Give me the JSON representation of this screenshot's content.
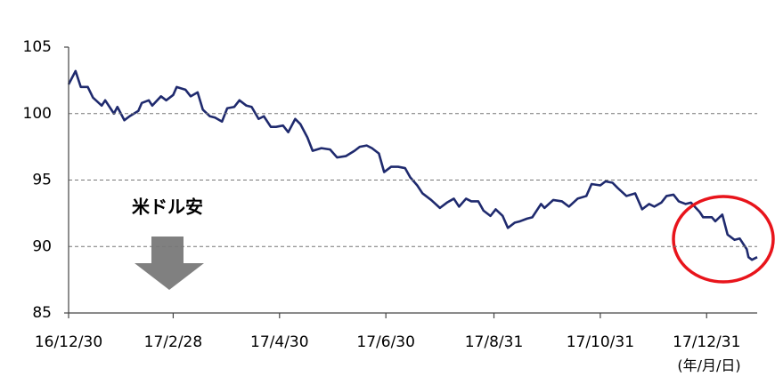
{
  "chart_data": {
    "type": "line",
    "annotations": [
      "米ドル安",
      "(年/月/日)"
    ],
    "x": [
      "2016-12-30",
      "2017-01-03",
      "2017-01-06",
      "2017-01-10",
      "2017-01-13",
      "2017-01-18",
      "2017-01-20",
      "2017-01-25",
      "2017-01-27",
      "2017-01-31",
      "2017-02-03",
      "2017-02-08",
      "2017-02-10",
      "2017-02-14",
      "2017-02-16",
      "2017-02-21",
      "2017-02-24",
      "2017-02-28",
      "2017-03-02",
      "2017-03-07",
      "2017-03-10",
      "2017-03-14",
      "2017-03-17",
      "2017-03-21",
      "2017-03-24",
      "2017-03-28",
      "2017-03-31",
      "2017-04-04",
      "2017-04-07",
      "2017-04-11",
      "2017-04-14",
      "2017-04-18",
      "2017-04-21",
      "2017-04-25",
      "2017-04-28",
      "2017-05-02",
      "2017-05-05",
      "2017-05-09",
      "2017-05-12",
      "2017-05-16",
      "2017-05-19",
      "2017-05-24",
      "2017-05-29",
      "2017-06-02",
      "2017-06-07",
      "2017-06-12",
      "2017-06-15",
      "2017-06-19",
      "2017-06-22",
      "2017-06-26",
      "2017-06-29",
      "2017-07-03",
      "2017-07-07",
      "2017-07-11",
      "2017-07-14",
      "2017-07-18",
      "2017-07-21",
      "2017-07-26",
      "2017-07-31",
      "2017-08-04",
      "2017-08-08",
      "2017-08-11",
      "2017-08-15",
      "2017-08-18",
      "2017-08-22",
      "2017-08-25",
      "2017-08-29",
      "2017-09-01",
      "2017-09-05",
      "2017-09-08",
      "2017-09-12",
      "2017-09-15",
      "2017-09-19",
      "2017-09-22",
      "2017-09-27",
      "2017-09-29",
      "2017-10-04",
      "2017-10-09",
      "2017-10-13",
      "2017-10-18",
      "2017-10-23",
      "2017-10-26",
      "2017-10-31",
      "2017-11-03",
      "2017-11-07",
      "2017-11-10",
      "2017-11-15",
      "2017-11-20",
      "2017-11-24",
      "2017-11-28",
      "2017-12-01",
      "2017-12-05",
      "2017-12-08",
      "2017-12-12",
      "2017-12-15",
      "2017-12-19",
      "2017-12-22",
      "2017-12-27",
      "2017-12-29",
      "2018-01-03",
      "2018-01-05",
      "2018-01-09",
      "2018-01-12",
      "2018-01-16",
      "2018-01-19",
      "2018-01-23",
      "2018-01-24",
      "2018-01-26",
      "2018-01-29"
    ],
    "series": [
      {
        "color": "#1f2a6e",
        "values": [
          102.2,
          103.2,
          102.0,
          102.0,
          101.2,
          100.6,
          101.0,
          100.0,
          100.5,
          99.5,
          99.8,
          100.2,
          100.8,
          101.0,
          100.6,
          101.3,
          101.0,
          101.4,
          102.0,
          101.8,
          101.3,
          101.6,
          100.3,
          99.8,
          99.7,
          99.4,
          100.4,
          100.5,
          101.0,
          100.6,
          100.5,
          99.6,
          99.8,
          99.0,
          99.0,
          99.1,
          98.6,
          99.6,
          99.2,
          98.2,
          97.2,
          97.4,
          97.3,
          96.7,
          96.8,
          97.2,
          97.5,
          97.6,
          97.4,
          97.0,
          95.6,
          96.0,
          96.0,
          95.9,
          95.2,
          94.6,
          94.0,
          93.5,
          92.9,
          93.3,
          93.6,
          93.0,
          93.6,
          93.4,
          93.4,
          92.7,
          92.3,
          92.8,
          92.3,
          91.4,
          91.8,
          91.9,
          92.1,
          92.2,
          93.2,
          92.9,
          93.5,
          93.4,
          93.0,
          93.6,
          93.8,
          94.7,
          94.6,
          94.9,
          94.8,
          94.4,
          93.8,
          94.0,
          92.8,
          93.2,
          93.0,
          93.3,
          93.8,
          93.9,
          93.4,
          93.2,
          93.3,
          92.6,
          92.2,
          92.2,
          91.9,
          92.4,
          90.9,
          90.5,
          90.6,
          89.8,
          89.2,
          89.0,
          89.2
        ]
      }
    ],
    "xlim": [
      "2016-12-30",
      "2018-01-29"
    ],
    "xticks": [
      {
        "value": "2016-12-30",
        "label": "16/12/30"
      },
      {
        "value": "2017-02-28",
        "label": "17/2/28"
      },
      {
        "value": "2017-04-30",
        "label": "17/4/30"
      },
      {
        "value": "2017-06-30",
        "label": "17/6/30"
      },
      {
        "value": "2017-08-31",
        "label": "17/8/31"
      },
      {
        "value": "2017-10-31",
        "label": "17/10/31"
      },
      {
        "value": "2017-12-31",
        "label": "17/12/31"
      }
    ],
    "ylim": [
      85,
      105
    ],
    "yticks": [
      85,
      90,
      95,
      100,
      105
    ],
    "grid": true
  }
}
